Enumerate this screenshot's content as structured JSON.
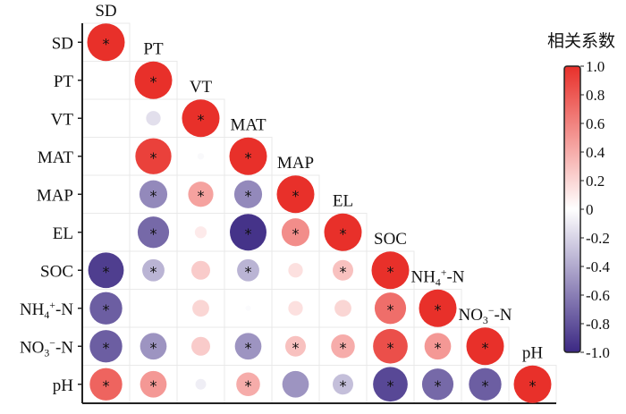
{
  "chart_data": {
    "type": "heatmap",
    "variables": [
      "SD",
      "PT",
      "VT",
      "MAT",
      "MAP",
      "EL",
      "SOC",
      "NH4+-N",
      "NO3−-N",
      "pH"
    ],
    "variable_display": [
      {
        "base": "SD",
        "sub": "",
        "sup": "",
        "tail": ""
      },
      {
        "base": "PT",
        "sub": "",
        "sup": "",
        "tail": ""
      },
      {
        "base": "VT",
        "sub": "",
        "sup": "",
        "tail": ""
      },
      {
        "base": "MAT",
        "sub": "",
        "sup": "",
        "tail": ""
      },
      {
        "base": "MAP",
        "sub": "",
        "sup": "",
        "tail": ""
      },
      {
        "base": "EL",
        "sub": "",
        "sup": "",
        "tail": ""
      },
      {
        "base": "SOC",
        "sub": "",
        "sup": "",
        "tail": ""
      },
      {
        "base": "NH",
        "sub": "4",
        "sup": "+",
        "tail": "-N"
      },
      {
        "base": "NO",
        "sub": "3",
        "sup": "−",
        "tail": "-N"
      },
      {
        "base": "pH",
        "sub": "",
        "sup": "",
        "tail": ""
      }
    ],
    "cells": [
      {
        "row": 0,
        "col": 0,
        "value": 1.0,
        "sig": true
      },
      {
        "row": 1,
        "col": 1,
        "value": 1.0,
        "sig": true
      },
      {
        "row": 2,
        "col": 1,
        "value": -0.15,
        "sig": false
      },
      {
        "row": 2,
        "col": 2,
        "value": 1.0,
        "sig": true
      },
      {
        "row": 3,
        "col": 1,
        "value": 0.92,
        "sig": true
      },
      {
        "row": 3,
        "col": 2,
        "value": -0.03,
        "sig": false
      },
      {
        "row": 3,
        "col": 3,
        "value": 1.0,
        "sig": true
      },
      {
        "row": 4,
        "col": 1,
        "value": -0.55,
        "sig": true
      },
      {
        "row": 4,
        "col": 2,
        "value": 0.45,
        "sig": true
      },
      {
        "row": 4,
        "col": 3,
        "value": -0.55,
        "sig": true
      },
      {
        "row": 4,
        "col": 4,
        "value": 1.0,
        "sig": true
      },
      {
        "row": 5,
        "col": 1,
        "value": -0.7,
        "sig": true
      },
      {
        "row": 5,
        "col": 2,
        "value": 0.1,
        "sig": false
      },
      {
        "row": 5,
        "col": 3,
        "value": -0.95,
        "sig": true
      },
      {
        "row": 5,
        "col": 4,
        "value": 0.55,
        "sig": true
      },
      {
        "row": 5,
        "col": 5,
        "value": 1.0,
        "sig": true
      },
      {
        "row": 6,
        "col": 0,
        "value": -0.9,
        "sig": true
      },
      {
        "row": 6,
        "col": 1,
        "value": -0.35,
        "sig": true
      },
      {
        "row": 6,
        "col": 2,
        "value": 0.25,
        "sig": false
      },
      {
        "row": 6,
        "col": 3,
        "value": -0.35,
        "sig": true
      },
      {
        "row": 6,
        "col": 4,
        "value": 0.15,
        "sig": false
      },
      {
        "row": 6,
        "col": 5,
        "value": 0.3,
        "sig": true
      },
      {
        "row": 6,
        "col": 6,
        "value": 1.0,
        "sig": true
      },
      {
        "row": 7,
        "col": 0,
        "value": -0.75,
        "sig": true
      },
      {
        "row": 7,
        "col": 1,
        "value": 0.0,
        "sig": false
      },
      {
        "row": 7,
        "col": 2,
        "value": 0.2,
        "sig": false
      },
      {
        "row": 7,
        "col": 3,
        "value": -0.02,
        "sig": false
      },
      {
        "row": 7,
        "col": 4,
        "value": 0.15,
        "sig": false
      },
      {
        "row": 7,
        "col": 5,
        "value": 0.2,
        "sig": false
      },
      {
        "row": 7,
        "col": 6,
        "value": 0.7,
        "sig": true
      },
      {
        "row": 7,
        "col": 7,
        "value": 1.0,
        "sig": true
      },
      {
        "row": 8,
        "col": 0,
        "value": -0.75,
        "sig": true
      },
      {
        "row": 8,
        "col": 1,
        "value": -0.5,
        "sig": true
      },
      {
        "row": 8,
        "col": 2,
        "value": 0.25,
        "sig": false
      },
      {
        "row": 8,
        "col": 3,
        "value": -0.5,
        "sig": true
      },
      {
        "row": 8,
        "col": 4,
        "value": 0.3,
        "sig": true
      },
      {
        "row": 8,
        "col": 5,
        "value": 0.4,
        "sig": true
      },
      {
        "row": 8,
        "col": 6,
        "value": 0.85,
        "sig": true
      },
      {
        "row": 8,
        "col": 7,
        "value": 0.5,
        "sig": true
      },
      {
        "row": 8,
        "col": 8,
        "value": 1.0,
        "sig": true
      },
      {
        "row": 9,
        "col": 0,
        "value": 0.75,
        "sig": true
      },
      {
        "row": 9,
        "col": 1,
        "value": 0.5,
        "sig": true
      },
      {
        "row": 9,
        "col": 2,
        "value": -0.08,
        "sig": false
      },
      {
        "row": 9,
        "col": 3,
        "value": 0.4,
        "sig": true
      },
      {
        "row": 9,
        "col": 4,
        "value": -0.5,
        "sig": false
      },
      {
        "row": 9,
        "col": 5,
        "value": -0.3,
        "sig": true
      },
      {
        "row": 9,
        "col": 6,
        "value": -0.85,
        "sig": true
      },
      {
        "row": 9,
        "col": 7,
        "value": -0.7,
        "sig": true
      },
      {
        "row": 9,
        "col": 8,
        "value": -0.75,
        "sig": true
      },
      {
        "row": 9,
        "col": 9,
        "value": 1.0,
        "sig": true
      }
    ],
    "significance_marker": "*",
    "colorbar": {
      "title": "相关系数",
      "range": [
        -1.0,
        1.0
      ],
      "ticks": [
        "1.0",
        "0.8",
        "0.6",
        "0.4",
        "0.2",
        "0",
        "-0.2",
        "-0.4",
        "-0.6",
        "-0.8",
        "-1.0"
      ],
      "tick_values": [
        1.0,
        0.8,
        0.6,
        0.4,
        0.2,
        0,
        -0.2,
        -0.4,
        -0.6,
        -0.8,
        -1.0
      ],
      "color_positive": "#e8302a",
      "color_zero": "#ffffff",
      "color_negative": "#3b2883"
    },
    "grid": true
  }
}
